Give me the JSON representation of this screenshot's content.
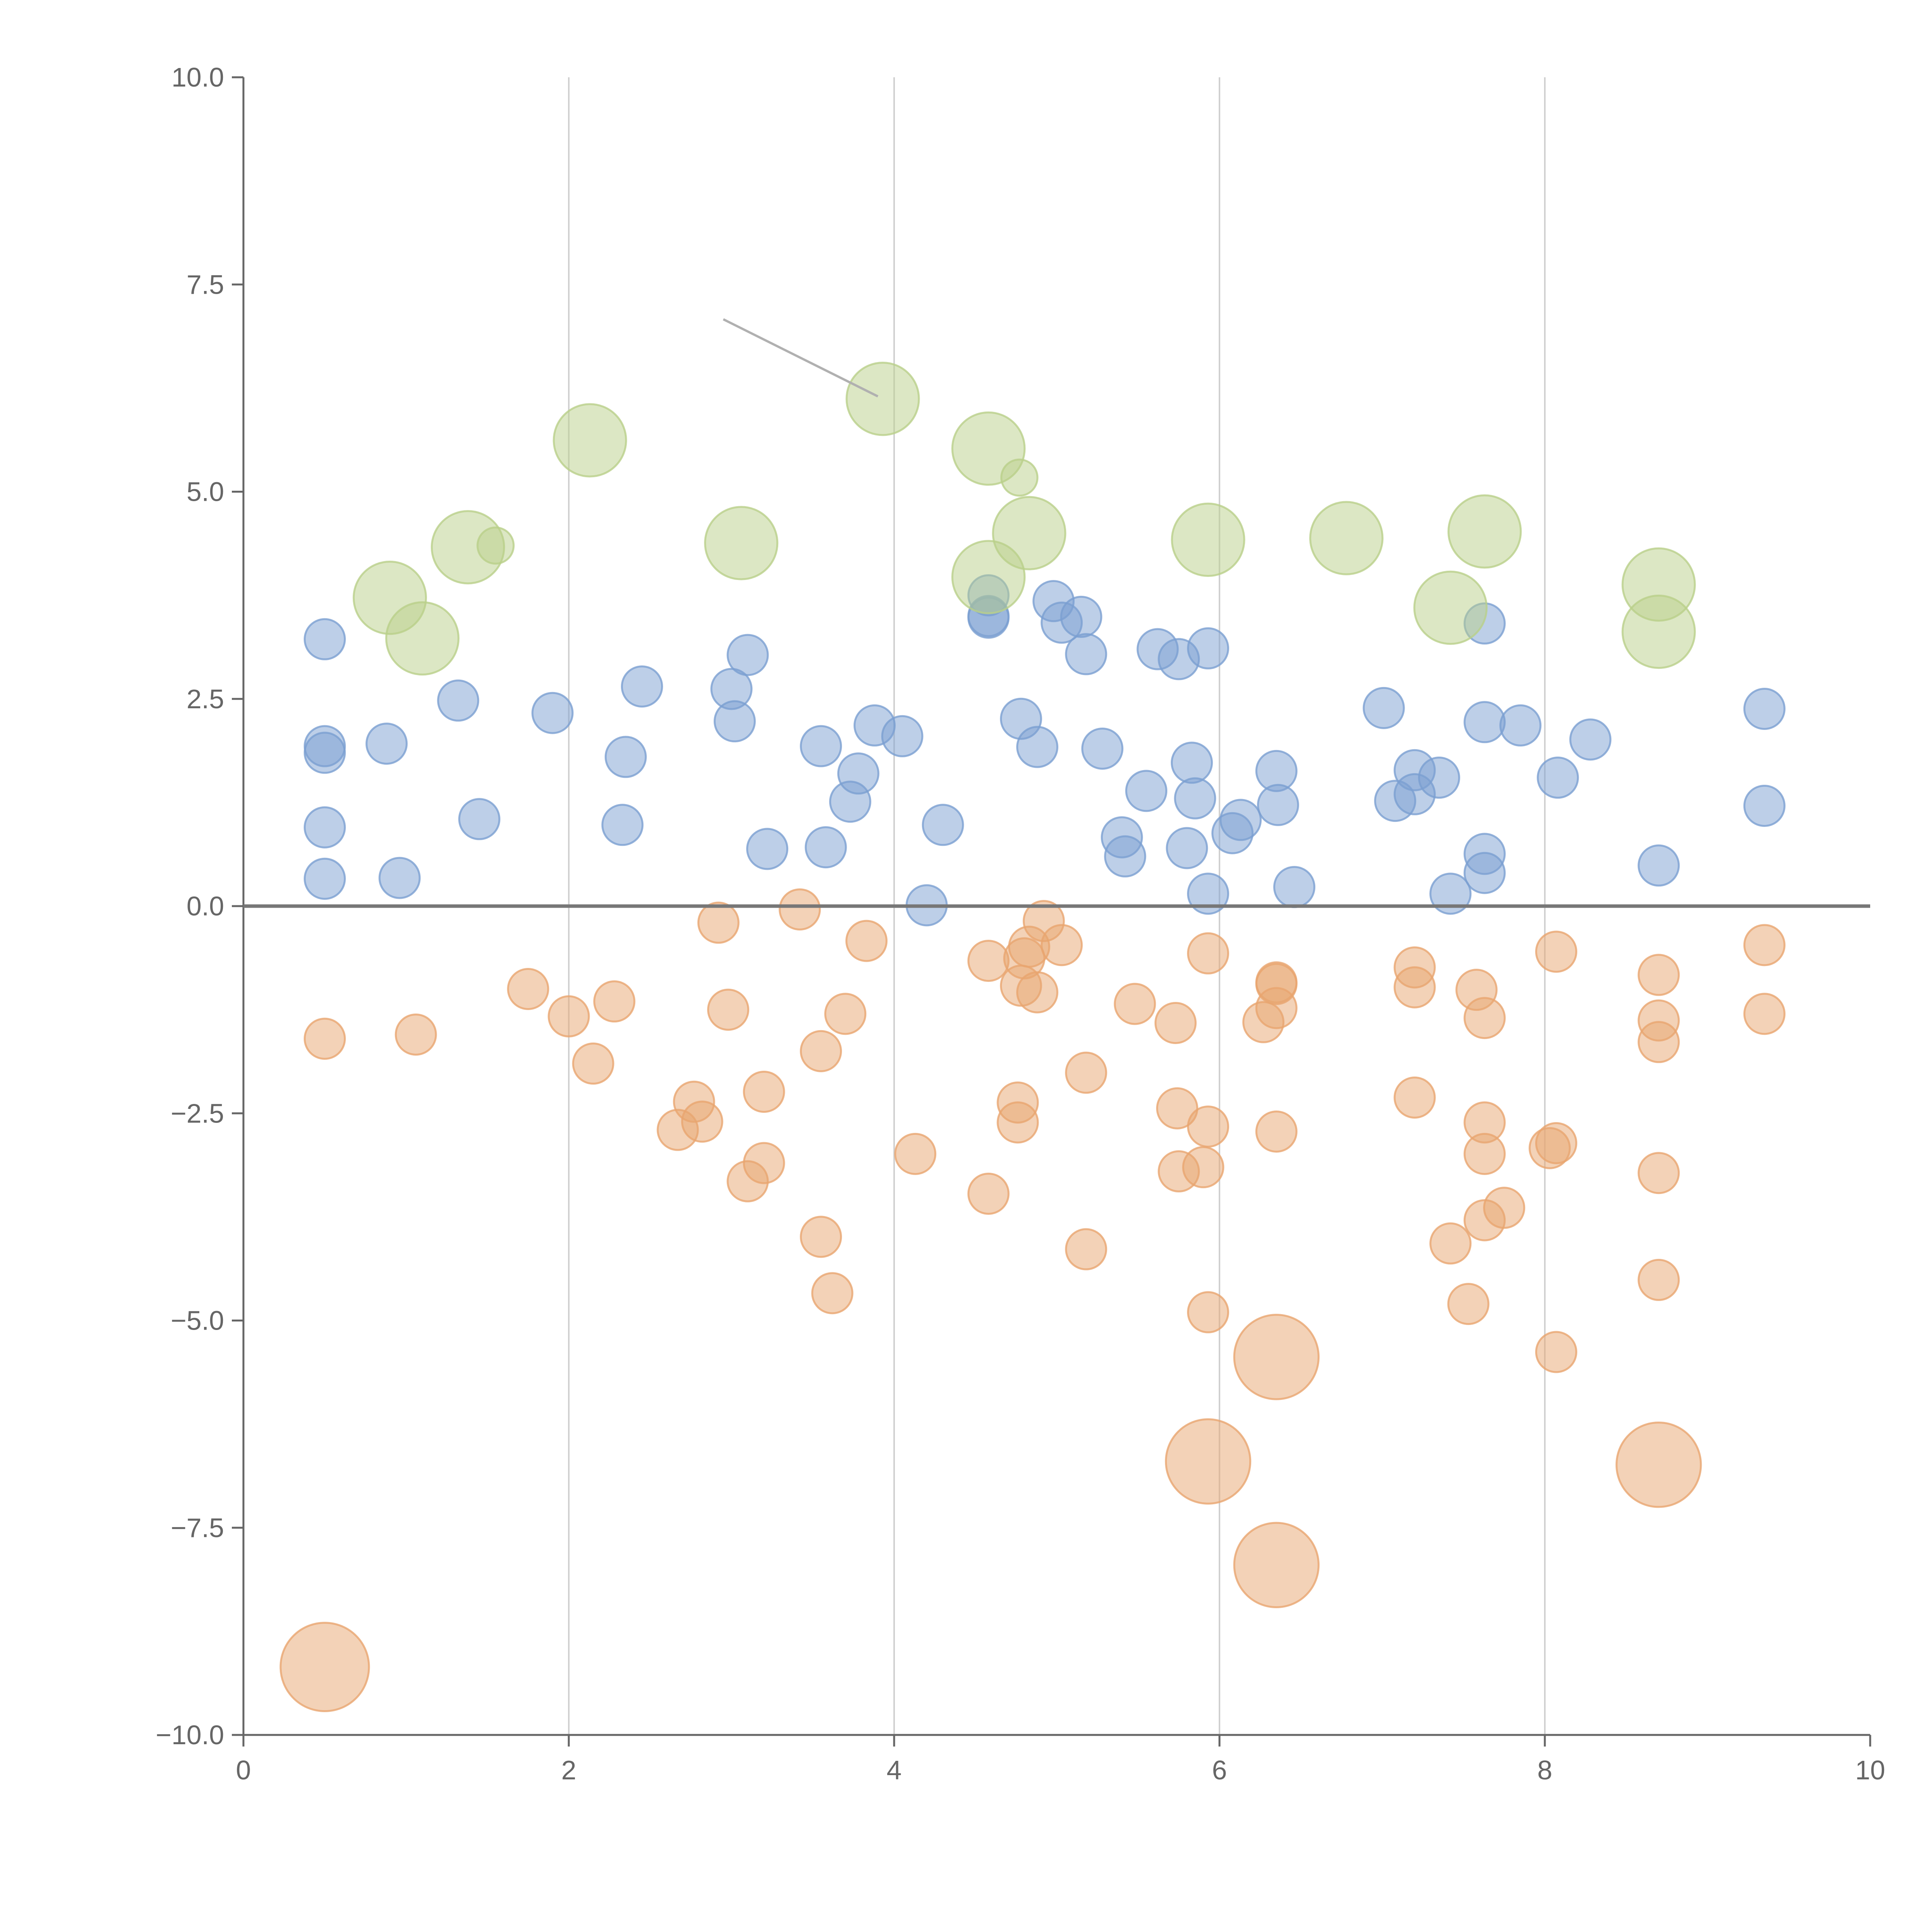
{
  "chart_data": {
    "type": "scatter",
    "title": "",
    "xlabel": "",
    "ylabel": "",
    "xlim": [
      0,
      10
    ],
    "ylim": [
      -10,
      10
    ],
    "xticks": [
      "0",
      "2",
      "4",
      "6",
      "8",
      "10"
    ],
    "yticks": [
      "10.0",
      "7.5",
      "5.0",
      "2.5",
      "0.0",
      "−2.5",
      "−5.0",
      "−7.5",
      "−10.0"
    ],
    "grid": "vertical",
    "zero_line": true,
    "series": [
      {
        "name": "blue",
        "color": "#7b9fd1",
        "points": [
          [
            0.5,
            3.22,
            1
          ],
          [
            0.5,
            1.93,
            1
          ],
          [
            0.5,
            1.85,
            1
          ],
          [
            0.5,
            0.95,
            1
          ],
          [
            0.5,
            0.33,
            1
          ],
          [
            0.88,
            1.96,
            1
          ],
          [
            0.96,
            0.34,
            1
          ],
          [
            1.45,
            1.05,
            1
          ],
          [
            1.32,
            2.48,
            1
          ],
          [
            1.9,
            2.33,
            1
          ],
          [
            2.33,
            0.98,
            1
          ],
          [
            2.35,
            1.8,
            1
          ],
          [
            2.45,
            2.65,
            1
          ],
          [
            3.0,
            2.62,
            1
          ],
          [
            3.02,
            2.23,
            1
          ],
          [
            3.1,
            3.03,
            1
          ],
          [
            3.22,
            0.69,
            1
          ],
          [
            3.55,
            1.93,
            1
          ],
          [
            3.58,
            0.71,
            1
          ],
          [
            3.73,
            1.26,
            1
          ],
          [
            3.78,
            1.6,
            1
          ],
          [
            3.88,
            2.18,
            1
          ],
          [
            4.05,
            2.05,
            1
          ],
          [
            4.2,
            0.01,
            1
          ],
          [
            4.3,
            0.98,
            1
          ],
          [
            4.58,
            3.75,
            1
          ],
          [
            4.58,
            3.5,
            1
          ],
          [
            4.58,
            3.48,
            1
          ],
          [
            4.78,
            2.26,
            1
          ],
          [
            4.88,
            1.92,
            1
          ],
          [
            4.98,
            3.68,
            1
          ],
          [
            5.03,
            3.42,
            1
          ],
          [
            5.15,
            3.49,
            1
          ],
          [
            5.18,
            3.04,
            1
          ],
          [
            5.28,
            1.9,
            1
          ],
          [
            5.4,
            0.83,
            1
          ],
          [
            5.42,
            0.6,
            1
          ],
          [
            5.55,
            1.39,
            1
          ],
          [
            5.62,
            3.1,
            1
          ],
          [
            5.75,
            2.98,
            1
          ],
          [
            5.8,
            0.7,
            1
          ],
          [
            5.83,
            1.73,
            1
          ],
          [
            5.85,
            1.3,
            1
          ],
          [
            5.93,
            3.11,
            1
          ],
          [
            5.93,
            0.15,
            1
          ],
          [
            6.08,
            0.88,
            1
          ],
          [
            6.13,
            1.04,
            1
          ],
          [
            6.35,
            1.63,
            1
          ],
          [
            6.36,
            1.22,
            1
          ],
          [
            6.46,
            0.23,
            1
          ],
          [
            7.01,
            2.39,
            1
          ],
          [
            7.08,
            1.27,
            1
          ],
          [
            7.2,
            1.64,
            1
          ],
          [
            7.2,
            1.35,
            1
          ],
          [
            7.35,
            1.55,
            1
          ],
          [
            7.42,
            0.15,
            1
          ],
          [
            7.63,
            3.41,
            1
          ],
          [
            7.63,
            2.22,
            1
          ],
          [
            7.63,
            0.63,
            1
          ],
          [
            7.63,
            0.4,
            1
          ],
          [
            7.85,
            2.18,
            1
          ],
          [
            8.08,
            1.55,
            1
          ],
          [
            8.28,
            2.01,
            1
          ],
          [
            8.7,
            0.49,
            1
          ],
          [
            9.35,
            2.38,
            1
          ],
          [
            9.35,
            1.21,
            1
          ]
        ]
      },
      {
        "name": "orange",
        "color": "#e8a56f",
        "points": [
          [
            0.5,
            -1.6,
            1
          ],
          [
            0.5,
            -9.18,
            2.2
          ],
          [
            1.06,
            -1.55,
            1
          ],
          [
            1.75,
            -1.0,
            1
          ],
          [
            2.0,
            -1.33,
            1
          ],
          [
            2.15,
            -1.9,
            1
          ],
          [
            2.28,
            -1.15,
            1
          ],
          [
            2.67,
            -2.7,
            1
          ],
          [
            2.77,
            -2.36,
            1
          ],
          [
            2.82,
            -2.6,
            1
          ],
          [
            2.92,
            -0.2,
            1
          ],
          [
            2.98,
            -1.25,
            1
          ],
          [
            3.1,
            -3.32,
            1
          ],
          [
            3.2,
            -3.1,
            1
          ],
          [
            3.2,
            -2.24,
            1
          ],
          [
            3.42,
            -0.04,
            1
          ],
          [
            3.55,
            -1.75,
            1
          ],
          [
            3.55,
            -3.99,
            1
          ],
          [
            3.62,
            -4.67,
            1
          ],
          [
            3.7,
            -1.3,
            1
          ],
          [
            3.83,
            -0.42,
            1
          ],
          [
            4.13,
            -2.99,
            1
          ],
          [
            4.58,
            -0.66,
            1
          ],
          [
            4.58,
            -3.47,
            1
          ],
          [
            4.76,
            -2.37,
            1
          ],
          [
            4.76,
            -2.61,
            1
          ],
          [
            4.78,
            -0.96,
            1
          ],
          [
            4.8,
            -0.63,
            1
          ],
          [
            4.83,
            -0.49,
            1
          ],
          [
            4.88,
            -1.04,
            1
          ],
          [
            4.92,
            -0.18,
            1
          ],
          [
            5.03,
            -0.47,
            1
          ],
          [
            5.18,
            -2.01,
            1
          ],
          [
            5.18,
            -4.14,
            1
          ],
          [
            5.48,
            -1.18,
            1
          ],
          [
            5.73,
            -1.41,
            1
          ],
          [
            5.74,
            -2.44,
            1
          ],
          [
            5.75,
            -3.2,
            1
          ],
          [
            5.9,
            -3.15,
            1
          ],
          [
            5.93,
            -0.57,
            1
          ],
          [
            5.93,
            -2.66,
            1
          ],
          [
            5.93,
            -4.9,
            1
          ],
          [
            5.93,
            -6.7,
            2.1
          ],
          [
            6.27,
            -1.4,
            1
          ],
          [
            6.35,
            -0.92,
            1
          ],
          [
            6.35,
            -0.94,
            1
          ],
          [
            6.35,
            -1.23,
            1
          ],
          [
            6.35,
            -2.72,
            1
          ],
          [
            6.35,
            -5.44,
            2.1
          ],
          [
            6.35,
            -7.95,
            2.1
          ],
          [
            7.2,
            -0.74,
            1
          ],
          [
            7.2,
            -0.98,
            1
          ],
          [
            7.2,
            -2.31,
            1
          ],
          [
            7.42,
            -4.07,
            1
          ],
          [
            7.53,
            -4.8,
            1
          ],
          [
            7.58,
            -1.01,
            1
          ],
          [
            7.63,
            -1.35,
            1
          ],
          [
            7.63,
            -2.61,
            1
          ],
          [
            7.63,
            -2.99,
            1
          ],
          [
            7.63,
            -3.79,
            1
          ],
          [
            7.75,
            -3.64,
            1
          ],
          [
            8.03,
            -2.92,
            1
          ],
          [
            8.07,
            -2.86,
            1
          ],
          [
            8.07,
            -0.55,
            1
          ],
          [
            8.07,
            -5.38,
            1
          ],
          [
            8.7,
            -0.83,
            1
          ],
          [
            8.7,
            -1.38,
            1
          ],
          [
            8.7,
            -1.64,
            1
          ],
          [
            8.7,
            -3.22,
            1
          ],
          [
            8.7,
            -4.51,
            1
          ],
          [
            8.7,
            -6.74,
            2.1
          ],
          [
            9.35,
            -0.47,
            1
          ],
          [
            9.35,
            -1.3,
            1
          ]
        ]
      },
      {
        "name": "green",
        "color": "#b9d08a",
        "points": [
          [
            0.9,
            3.72,
            1.8
          ],
          [
            1.1,
            3.23,
            1.8
          ],
          [
            1.38,
            4.33,
            1.8
          ],
          [
            1.55,
            4.35,
            0.9
          ],
          [
            2.13,
            5.62,
            1.8
          ],
          [
            3.06,
            4.38,
            1.8
          ],
          [
            3.93,
            6.12,
            1.8
          ],
          [
            4.58,
            5.52,
            1.8
          ],
          [
            4.58,
            3.97,
            1.8
          ],
          [
            4.77,
            5.17,
            0.9
          ],
          [
            4.83,
            4.5,
            1.8
          ],
          [
            5.93,
            4.42,
            1.8
          ],
          [
            6.78,
            4.44,
            1.8
          ],
          [
            7.42,
            3.6,
            1.8
          ],
          [
            7.63,
            4.52,
            1.8
          ],
          [
            8.7,
            3.88,
            1.8
          ],
          [
            8.7,
            3.31,
            1.8
          ]
        ]
      }
    ],
    "annotation_leader": {
      "from": [
        2.95,
        7.08
      ],
      "to": [
        3.9,
        6.15
      ]
    }
  }
}
